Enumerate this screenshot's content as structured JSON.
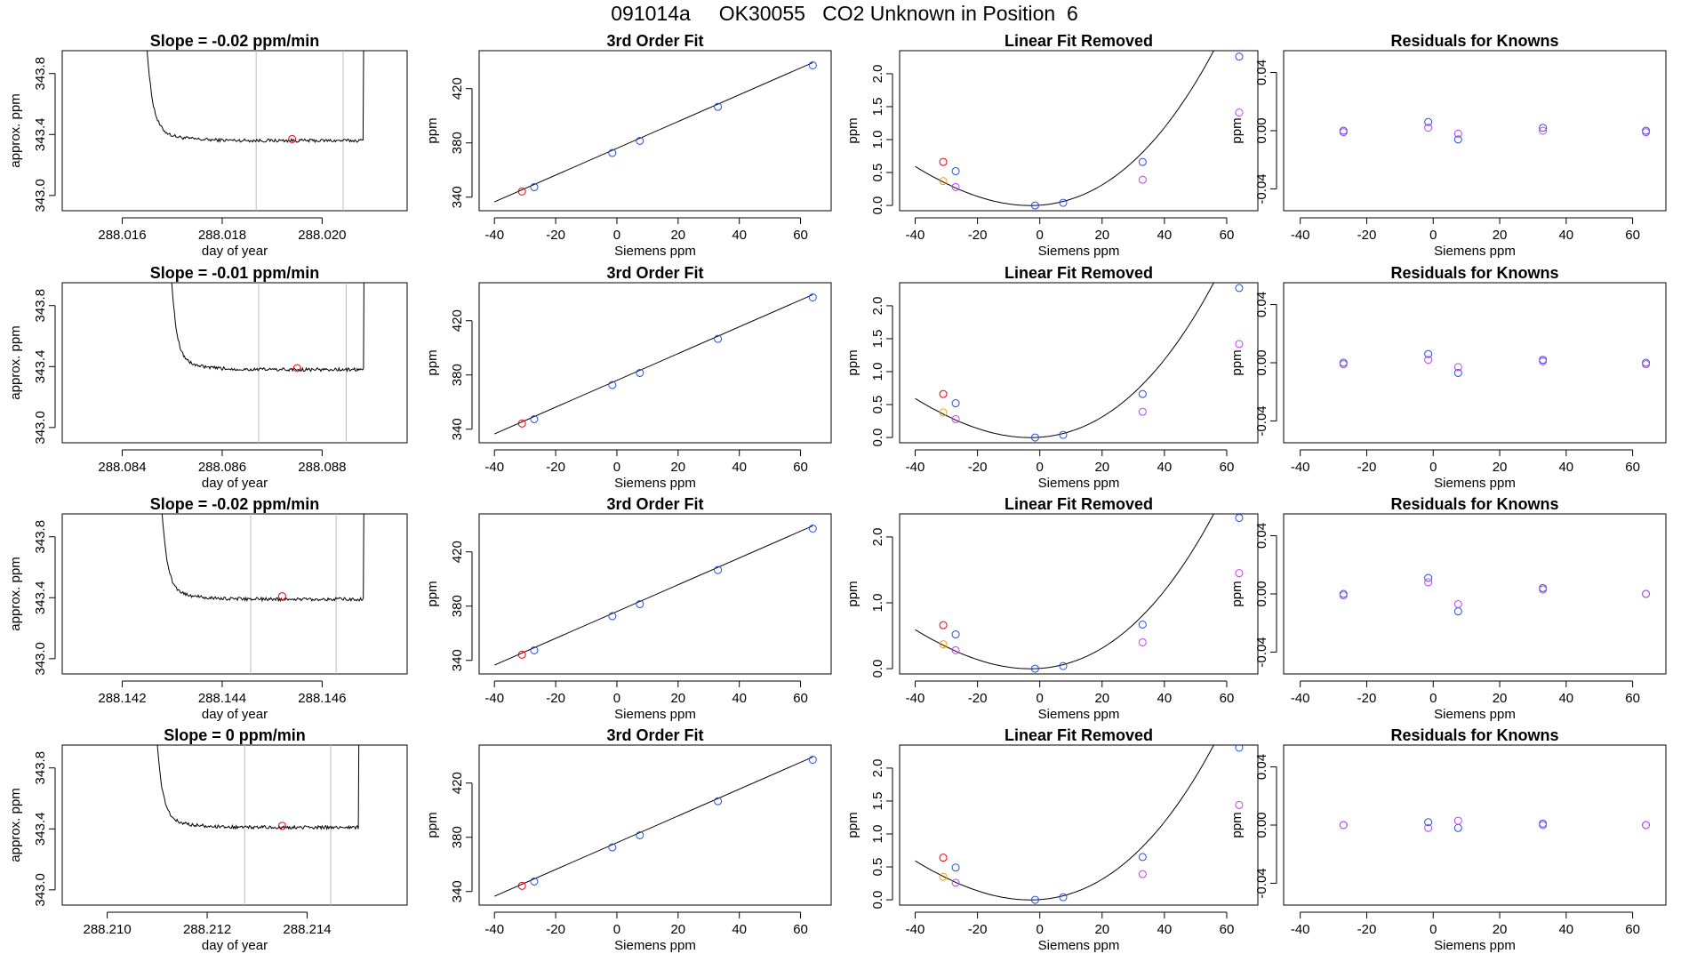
{
  "page_title": "091014a     OK30055   CO2 Unknown in Position  6",
  "chart_data": [
    {
      "panel": "timeseries",
      "type": "line",
      "title": "Slope =  -0.02  ppm/min",
      "xlabel": "day of year",
      "ylabel": "approx. ppm",
      "xlim": [
        288.0148,
        288.0217
      ],
      "ylim": [
        342.9,
        343.95
      ],
      "xticks": [
        288.016,
        288.018,
        288.02
      ],
      "xtick_labels": [
        "288.016",
        "288.018",
        "288.020"
      ],
      "yticks": [
        343.0,
        343.4,
        343.8
      ],
      "ytick_labels": [
        "343.0",
        "343.4",
        "343.8"
      ],
      "vlines": [
        288.01868,
        288.02042
      ],
      "start": 288.0164,
      "end": 288.0209,
      "level": 343.36,
      "selected_point": [
        288.0194,
        343.37
      ]
    },
    {
      "panel": "fit",
      "type": "scatter",
      "title": "3rd Order Fit",
      "xlabel": "Siemens ppm",
      "ylabel": "ppm",
      "xlim": [
        -45,
        70
      ],
      "ylim": [
        330,
        448
      ],
      "xticks": [
        -40,
        -20,
        0,
        20,
        40,
        60
      ],
      "yticks": [
        340,
        380,
        420
      ],
      "line": {
        "x": [
          -40,
          64
        ],
        "y": [
          336.5,
          439.2
        ]
      },
      "points": [
        {
          "x": -31,
          "y": 344.2,
          "color": "#e8000b"
        },
        {
          "x": -27,
          "y": 347.4,
          "color": "#1f4fe0"
        },
        {
          "x": -1.5,
          "y": 372.6,
          "color": "#1f4fe0"
        },
        {
          "x": 7.5,
          "y": 381.5,
          "color": "#1f4fe0"
        },
        {
          "x": 33,
          "y": 406.6,
          "color": "#1f4fe0"
        },
        {
          "x": 64,
          "y": 437.2,
          "color": "#1f4fe0"
        }
      ]
    },
    {
      "panel": "linear_removed",
      "type": "scatter",
      "title": "Linear Fit Removed",
      "xlabel": "Siemens ppm",
      "ylabel": "ppm",
      "xlim": [
        -45,
        70
      ],
      "ylim": [
        -0.08,
        2.35
      ],
      "xticks": [
        -40,
        -20,
        0,
        20,
        40,
        60
      ],
      "yticks": [
        0,
        0.5,
        1,
        1.5,
        2
      ],
      "ytick_labels": [
        "0.0",
        "0.5",
        "1.0",
        "1.5",
        "2.0"
      ],
      "points": [
        {
          "x": -31,
          "y": 0.66,
          "color": "#e8000b"
        },
        {
          "x": -31,
          "y": 0.37,
          "color": "#f5a300"
        },
        {
          "x": -27,
          "y": 0.52,
          "color": "#1f4fe0"
        },
        {
          "x": -27,
          "y": 0.28,
          "color": "#c040f0"
        },
        {
          "x": -1.5,
          "y": 0.0,
          "color": "#1f4fe0"
        },
        {
          "x": 7.5,
          "y": 0.04,
          "color": "#1f4fe0"
        },
        {
          "x": 33,
          "y": 0.66,
          "color": "#1f4fe0"
        },
        {
          "x": 33,
          "y": 0.39,
          "color": "#c040f0"
        },
        {
          "x": 64,
          "y": 2.26,
          "color": "#1f4fe0"
        },
        {
          "x": 64,
          "y": 1.41,
          "color": "#c040f0"
        }
      ]
    },
    {
      "panel": "residuals",
      "type": "scatter",
      "title": "Residuals for Knowns",
      "xlabel": "Siemens ppm",
      "ylabel": "ppm",
      "xlim": [
        -45,
        70
      ],
      "ylim": [
        -0.055,
        0.055
      ],
      "xticks": [
        -40,
        -20,
        0,
        20,
        40,
        60
      ],
      "yticks": [
        -0.04,
        0,
        0.04
      ],
      "ytick_labels": [
        "-0.04",
        "0.00",
        "0.04"
      ],
      "points": [
        {
          "x": -27,
          "y": 0.0,
          "color": "#1f4fe0"
        },
        {
          "x": -27,
          "y": -0.001,
          "color": "#c040f0"
        },
        {
          "x": -1.5,
          "y": 0.006,
          "color": "#1f4fe0"
        },
        {
          "x": -1.5,
          "y": 0.002,
          "color": "#c040f0"
        },
        {
          "x": 7.5,
          "y": -0.006,
          "color": "#1f4fe0"
        },
        {
          "x": 7.5,
          "y": -0.002,
          "color": "#c040f0"
        },
        {
          "x": 33,
          "y": 0.002,
          "color": "#1f4fe0"
        },
        {
          "x": 33,
          "y": 0.0,
          "color": "#c040f0"
        },
        {
          "x": 64,
          "y": 0.0,
          "color": "#1f4fe0"
        },
        {
          "x": 64,
          "y": -0.001,
          "color": "#c040f0"
        }
      ]
    },
    {
      "panel": "timeseries",
      "type": "line",
      "title": "Slope =  -0.01  ppm/min",
      "xlabel": "day of year",
      "ylabel": "approx. ppm",
      "xlim": [
        288.0828,
        288.0897
      ],
      "ylim": [
        342.9,
        343.95
      ],
      "xticks": [
        288.084,
        288.086,
        288.088
      ],
      "xtick_labels": [
        "288.084",
        "288.086",
        "288.088"
      ],
      "yticks": [
        343.0,
        343.4,
        343.8
      ],
      "ytick_labels": [
        "343.0",
        "343.4",
        "343.8"
      ],
      "vlines": [
        288.08673,
        288.08848
      ],
      "start": 288.0849,
      "end": 288.0889,
      "level": 343.38,
      "selected_point": [
        288.0875,
        343.39
      ]
    },
    {
      "panel": "fit",
      "type": "scatter",
      "title": "3rd Order Fit",
      "xlabel": "Siemens ppm",
      "ylabel": "ppm",
      "xlim": [
        -45,
        70
      ],
      "ylim": [
        330,
        448
      ],
      "xticks": [
        -40,
        -20,
        0,
        20,
        40,
        60
      ],
      "yticks": [
        340,
        380,
        420
      ],
      "line": {
        "x": [
          -40,
          64
        ],
        "y": [
          336.5,
          439.2
        ]
      },
      "points": [
        {
          "x": -31,
          "y": 344.2,
          "color": "#e8000b"
        },
        {
          "x": -27,
          "y": 347.4,
          "color": "#1f4fe0"
        },
        {
          "x": -1.5,
          "y": 372.6,
          "color": "#1f4fe0"
        },
        {
          "x": 7.5,
          "y": 381.5,
          "color": "#1f4fe0"
        },
        {
          "x": 33,
          "y": 406.6,
          "color": "#1f4fe0"
        },
        {
          "x": 64,
          "y": 437.2,
          "color": "#1f4fe0"
        }
      ]
    },
    {
      "panel": "linear_removed",
      "type": "scatter",
      "title": "Linear Fit Removed",
      "xlabel": "Siemens ppm",
      "ylabel": "ppm",
      "xlim": [
        -45,
        70
      ],
      "ylim": [
        -0.08,
        2.35
      ],
      "xticks": [
        -40,
        -20,
        0,
        20,
        40,
        60
      ],
      "yticks": [
        0,
        0.5,
        1,
        1.5,
        2
      ],
      "ytick_labels": [
        "0.0",
        "0.5",
        "1.0",
        "1.5",
        "2.0"
      ],
      "points": [
        {
          "x": -31,
          "y": 0.66,
          "color": "#e8000b"
        },
        {
          "x": -31,
          "y": 0.38,
          "color": "#f5a300"
        },
        {
          "x": -27,
          "y": 0.52,
          "color": "#1f4fe0"
        },
        {
          "x": -27,
          "y": 0.28,
          "color": "#c040f0"
        },
        {
          "x": -1.5,
          "y": 0.0,
          "color": "#1f4fe0"
        },
        {
          "x": 7.5,
          "y": 0.04,
          "color": "#1f4fe0"
        },
        {
          "x": 33,
          "y": 0.66,
          "color": "#1f4fe0"
        },
        {
          "x": 33,
          "y": 0.39,
          "color": "#c040f0"
        },
        {
          "x": 64,
          "y": 2.27,
          "color": "#1f4fe0"
        },
        {
          "x": 64,
          "y": 1.42,
          "color": "#c040f0"
        }
      ]
    },
    {
      "panel": "residuals",
      "type": "scatter",
      "title": "Residuals for Knowns",
      "xlabel": "Siemens ppm",
      "ylabel": "ppm",
      "xlim": [
        -45,
        70
      ],
      "ylim": [
        -0.055,
        0.055
      ],
      "xticks": [
        -40,
        -20,
        0,
        20,
        40,
        60
      ],
      "yticks": [
        -0.04,
        0,
        0.04
      ],
      "ytick_labels": [
        "-0.04",
        "0.00",
        "0.04"
      ],
      "points": [
        {
          "x": -27,
          "y": 0.0,
          "color": "#1f4fe0"
        },
        {
          "x": -27,
          "y": -0.001,
          "color": "#c040f0"
        },
        {
          "x": -1.5,
          "y": 0.006,
          "color": "#1f4fe0"
        },
        {
          "x": -1.5,
          "y": 0.002,
          "color": "#c040f0"
        },
        {
          "x": 7.5,
          "y": -0.007,
          "color": "#1f4fe0"
        },
        {
          "x": 7.5,
          "y": -0.003,
          "color": "#c040f0"
        },
        {
          "x": 33,
          "y": 0.002,
          "color": "#1f4fe0"
        },
        {
          "x": 33,
          "y": 0.001,
          "color": "#c040f0"
        },
        {
          "x": 64,
          "y": 0.0,
          "color": "#1f4fe0"
        },
        {
          "x": 64,
          "y": -0.001,
          "color": "#c040f0"
        }
      ]
    },
    {
      "panel": "timeseries",
      "type": "line",
      "title": "Slope =  -0.02  ppm/min",
      "xlabel": "day of year",
      "ylabel": "approx. ppm",
      "xlim": [
        288.1408,
        288.1477
      ],
      "ylim": [
        342.9,
        343.95
      ],
      "xticks": [
        288.142,
        288.144,
        288.146
      ],
      "xtick_labels": [
        "288.142",
        "288.144",
        "288.146"
      ],
      "yticks": [
        343.0,
        343.4,
        343.8
      ],
      "ytick_labels": [
        "343.0",
        "343.4",
        "343.8"
      ],
      "vlines": [
        288.14457,
        288.14628
      ],
      "start": 288.1427,
      "end": 288.1469,
      "level": 343.39,
      "selected_point": [
        288.1452,
        343.41
      ]
    },
    {
      "panel": "fit",
      "type": "scatter",
      "title": "3rd Order Fit",
      "xlabel": "Siemens ppm",
      "ylabel": "ppm",
      "xlim": [
        -45,
        70
      ],
      "ylim": [
        330,
        448
      ],
      "xticks": [
        -40,
        -20,
        0,
        20,
        40,
        60
      ],
      "yticks": [
        340,
        380,
        420
      ],
      "line": {
        "x": [
          -40,
          64
        ],
        "y": [
          336.5,
          439.2
        ]
      },
      "points": [
        {
          "x": -31,
          "y": 344.2,
          "color": "#e8000b"
        },
        {
          "x": -27,
          "y": 347.4,
          "color": "#1f4fe0"
        },
        {
          "x": -1.5,
          "y": 372.6,
          "color": "#1f4fe0"
        },
        {
          "x": 7.5,
          "y": 381.5,
          "color": "#1f4fe0"
        },
        {
          "x": 33,
          "y": 406.6,
          "color": "#1f4fe0"
        },
        {
          "x": 64,
          "y": 437.2,
          "color": "#1f4fe0"
        }
      ]
    },
    {
      "panel": "linear_removed",
      "type": "scatter",
      "title": "Linear Fit Removed",
      "xlabel": "Siemens ppm",
      "ylabel": "ppm",
      "xlim": [
        -45,
        70
      ],
      "ylim": [
        -0.08,
        2.35
      ],
      "xticks": [
        -40,
        -20,
        0,
        20,
        40,
        60
      ],
      "yticks": [
        0,
        1,
        2
      ],
      "ytick_labels": [
        "0.0",
        "1.0",
        "2.0"
      ],
      "points": [
        {
          "x": -31,
          "y": 0.66,
          "color": "#e8000b"
        },
        {
          "x": -31,
          "y": 0.37,
          "color": "#f5a300"
        },
        {
          "x": -27,
          "y": 0.52,
          "color": "#1f4fe0"
        },
        {
          "x": -27,
          "y": 0.28,
          "color": "#c040f0"
        },
        {
          "x": -1.5,
          "y": 0.0,
          "color": "#1f4fe0"
        },
        {
          "x": 7.5,
          "y": 0.04,
          "color": "#1f4fe0"
        },
        {
          "x": 33,
          "y": 0.67,
          "color": "#1f4fe0"
        },
        {
          "x": 33,
          "y": 0.4,
          "color": "#c040f0"
        },
        {
          "x": 64,
          "y": 2.29,
          "color": "#1f4fe0"
        },
        {
          "x": 64,
          "y": 1.45,
          "color": "#c040f0"
        }
      ]
    },
    {
      "panel": "residuals",
      "type": "scatter",
      "title": "Residuals for Knowns",
      "xlabel": "Siemens ppm",
      "ylabel": "ppm",
      "xlim": [
        -45,
        70
      ],
      "ylim": [
        -0.055,
        0.055
      ],
      "xticks": [
        -40,
        -20,
        0,
        20,
        40,
        60
      ],
      "yticks": [
        -0.04,
        0,
        0.04
      ],
      "ytick_labels": [
        "-0.04",
        "0.00",
        "0.04"
      ],
      "points": [
        {
          "x": -27,
          "y": 0.0,
          "color": "#1f4fe0"
        },
        {
          "x": -27,
          "y": -0.001,
          "color": "#c040f0"
        },
        {
          "x": -1.5,
          "y": 0.011,
          "color": "#1f4fe0"
        },
        {
          "x": -1.5,
          "y": 0.008,
          "color": "#c040f0"
        },
        {
          "x": 7.5,
          "y": -0.012,
          "color": "#1f4fe0"
        },
        {
          "x": 7.5,
          "y": -0.007,
          "color": "#c040f0"
        },
        {
          "x": 33,
          "y": 0.004,
          "color": "#1f4fe0"
        },
        {
          "x": 33,
          "y": 0.003,
          "color": "#c040f0"
        },
        {
          "x": 64,
          "y": 0.0,
          "color": "#1f4fe0"
        },
        {
          "x": 64,
          "y": 0.0,
          "color": "#c040f0"
        }
      ]
    },
    {
      "panel": "timeseries",
      "type": "line",
      "title": "Slope =  0  ppm/min",
      "xlabel": "day of year",
      "ylabel": "approx. ppm",
      "xlim": [
        288.2091,
        288.216
      ],
      "ylim": [
        342.9,
        343.95
      ],
      "xticks": [
        288.21,
        288.212,
        288.214
      ],
      "xtick_labels": [
        "288.210",
        "288.212",
        "288.214"
      ],
      "yticks": [
        343.0,
        343.4,
        343.8
      ],
      "ytick_labels": [
        "343.0",
        "343.4",
        "343.8"
      ],
      "vlines": [
        288.21275,
        288.21447
      ],
      "start": 288.2109,
      "end": 288.2151,
      "level": 343.41,
      "selected_point": [
        288.2135,
        343.42
      ]
    },
    {
      "panel": "fit",
      "type": "scatter",
      "title": "3rd Order Fit",
      "xlabel": "Siemens ppm",
      "ylabel": "ppm",
      "xlim": [
        -45,
        70
      ],
      "ylim": [
        330,
        448
      ],
      "xticks": [
        -40,
        -20,
        0,
        20,
        40,
        60
      ],
      "yticks": [
        340,
        380,
        420
      ],
      "line": {
        "x": [
          -40,
          64
        ],
        "y": [
          336.5,
          439.2
        ]
      },
      "points": [
        {
          "x": -31,
          "y": 344.2,
          "color": "#e8000b"
        },
        {
          "x": -27,
          "y": 347.4,
          "color": "#1f4fe0"
        },
        {
          "x": -1.5,
          "y": 372.6,
          "color": "#1f4fe0"
        },
        {
          "x": 7.5,
          "y": 381.5,
          "color": "#1f4fe0"
        },
        {
          "x": 33,
          "y": 406.6,
          "color": "#1f4fe0"
        },
        {
          "x": 64,
          "y": 437.2,
          "color": "#1f4fe0"
        }
      ]
    },
    {
      "panel": "linear_removed",
      "type": "scatter",
      "title": "Linear Fit Removed",
      "xlabel": "Siemens ppm",
      "ylabel": "ppm",
      "xlim": [
        -45,
        70
      ],
      "ylim": [
        -0.08,
        2.35
      ],
      "xticks": [
        -40,
        -20,
        0,
        20,
        40,
        60
      ],
      "yticks": [
        0,
        0.5,
        1,
        1.5,
        2
      ],
      "ytick_labels": [
        "0.0",
        "0.5",
        "1.0",
        "1.5",
        "2.0"
      ],
      "points": [
        {
          "x": -31,
          "y": 0.64,
          "color": "#e8000b"
        },
        {
          "x": -31,
          "y": 0.35,
          "color": "#f5a300"
        },
        {
          "x": -27,
          "y": 0.49,
          "color": "#1f4fe0"
        },
        {
          "x": -27,
          "y": 0.26,
          "color": "#c040f0"
        },
        {
          "x": -1.5,
          "y": 0.0,
          "color": "#1f4fe0"
        },
        {
          "x": 7.5,
          "y": 0.04,
          "color": "#1f4fe0"
        },
        {
          "x": 33,
          "y": 0.65,
          "color": "#1f4fe0"
        },
        {
          "x": 33,
          "y": 0.39,
          "color": "#c040f0"
        },
        {
          "x": 64,
          "y": 2.31,
          "color": "#1f4fe0"
        },
        {
          "x": 64,
          "y": 1.44,
          "color": "#c040f0"
        }
      ]
    },
    {
      "panel": "residuals",
      "type": "scatter",
      "title": "Residuals for Knowns",
      "xlabel": "Siemens ppm",
      "ylabel": "ppm",
      "xlim": [
        -45,
        70
      ],
      "ylim": [
        -0.055,
        0.055
      ],
      "xticks": [
        -40,
        -20,
        0,
        20,
        40,
        60
      ],
      "yticks": [
        -0.04,
        0,
        0.04
      ],
      "ytick_labels": [
        "-0.04",
        "0.00",
        "0.04"
      ],
      "points": [
        {
          "x": -27,
          "y": 0.0,
          "color": "#1f4fe0"
        },
        {
          "x": -27,
          "y": 0.0,
          "color": "#c040f0"
        },
        {
          "x": -1.5,
          "y": 0.002,
          "color": "#1f4fe0"
        },
        {
          "x": -1.5,
          "y": -0.002,
          "color": "#c040f0"
        },
        {
          "x": 7.5,
          "y": -0.002,
          "color": "#1f4fe0"
        },
        {
          "x": 7.5,
          "y": 0.003,
          "color": "#c040f0"
        },
        {
          "x": 33,
          "y": 0.001,
          "color": "#1f4fe0"
        },
        {
          "x": 33,
          "y": 0.0,
          "color": "#c040f0"
        },
        {
          "x": 64,
          "y": 0.0,
          "color": "#1f4fe0"
        },
        {
          "x": 64,
          "y": 0.0,
          "color": "#c040f0"
        }
      ]
    }
  ]
}
